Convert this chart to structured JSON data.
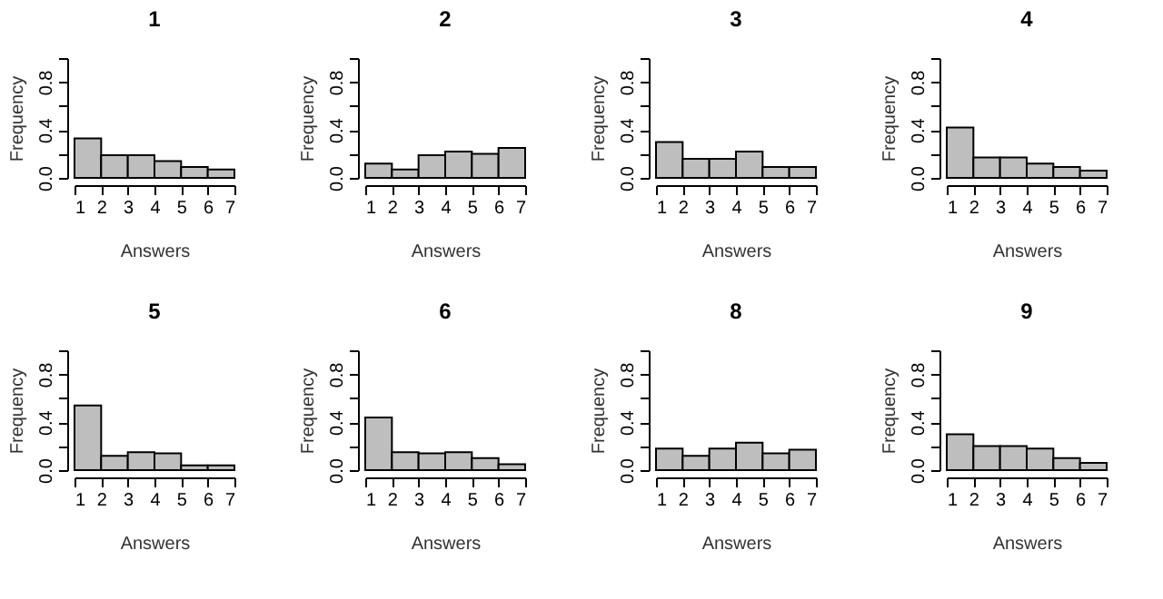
{
  "chart_data": [
    {
      "type": "histogram",
      "title": "1",
      "xlabel": "Answers",
      "ylabel": "Frequency",
      "bins": [
        1,
        2,
        3,
        4,
        5,
        6,
        7
      ],
      "values": [
        0.33,
        0.19,
        0.19,
        0.14,
        0.09,
        0.07
      ],
      "color": "#bebebe",
      "xlim": [
        1,
        7
      ],
      "xticks": [
        1,
        2,
        3,
        4,
        5,
        6,
        7
      ],
      "ylim": [
        0,
        1
      ],
      "yticks": [
        {
          "value": 0,
          "label": "0.0"
        },
        {
          "value": 0.2,
          "label": null
        },
        {
          "value": 0.4,
          "label": "0.4"
        },
        {
          "value": 0.6,
          "label": null
        },
        {
          "value": 0.8,
          "label": "0.8"
        },
        {
          "value": 1,
          "label": null
        }
      ]
    },
    {
      "type": "histogram",
      "title": "2",
      "xlabel": "Answers",
      "ylabel": "Frequency",
      "bins": [
        1,
        2,
        3,
        4,
        5,
        6,
        7
      ],
      "values": [
        0.12,
        0.07,
        0.19,
        0.22,
        0.2,
        0.25
      ],
      "color": "#bebebe",
      "xlim": [
        1,
        7
      ],
      "xticks": [
        1,
        2,
        3,
        4,
        5,
        6,
        7
      ],
      "ylim": [
        0,
        1
      ],
      "yticks": [
        {
          "value": 0,
          "label": "0.0"
        },
        {
          "value": 0.2,
          "label": null
        },
        {
          "value": 0.4,
          "label": "0.4"
        },
        {
          "value": 0.6,
          "label": null
        },
        {
          "value": 0.8,
          "label": "0.8"
        },
        {
          "value": 1,
          "label": null
        }
      ]
    },
    {
      "type": "histogram",
      "title": "3",
      "xlabel": "Answers",
      "ylabel": "Frequency",
      "bins": [
        1,
        2,
        3,
        4,
        5,
        6,
        7
      ],
      "values": [
        0.3,
        0.16,
        0.16,
        0.22,
        0.09,
        0.09
      ],
      "color": "#bebebe",
      "xlim": [
        1,
        7
      ],
      "xticks": [
        1,
        2,
        3,
        4,
        5,
        6,
        7
      ],
      "ylim": [
        0,
        1
      ],
      "yticks": [
        {
          "value": 0,
          "label": "0.0"
        },
        {
          "value": 0.2,
          "label": null
        },
        {
          "value": 0.4,
          "label": "0.4"
        },
        {
          "value": 0.6,
          "label": null
        },
        {
          "value": 0.8,
          "label": "0.8"
        },
        {
          "value": 1,
          "label": null
        }
      ]
    },
    {
      "type": "histogram",
      "title": "4",
      "xlabel": "Answers",
      "ylabel": "Frequency",
      "bins": [
        1,
        2,
        3,
        4,
        5,
        6,
        7
      ],
      "values": [
        0.42,
        0.17,
        0.17,
        0.12,
        0.09,
        0.06
      ],
      "color": "#bebebe",
      "xlim": [
        1,
        7
      ],
      "xticks": [
        1,
        2,
        3,
        4,
        5,
        6,
        7
      ],
      "ylim": [
        0,
        1
      ],
      "yticks": [
        {
          "value": 0,
          "label": "0.0"
        },
        {
          "value": 0.2,
          "label": null
        },
        {
          "value": 0.4,
          "label": "0.4"
        },
        {
          "value": 0.6,
          "label": null
        },
        {
          "value": 0.8,
          "label": "0.8"
        },
        {
          "value": 1,
          "label": null
        }
      ]
    },
    {
      "type": "histogram",
      "title": "5",
      "xlabel": "Answers",
      "ylabel": "Frequency",
      "bins": [
        1,
        2,
        3,
        4,
        5,
        6,
        7
      ],
      "values": [
        0.54,
        0.12,
        0.15,
        0.14,
        0.04,
        0.04
      ],
      "color": "#bebebe",
      "xlim": [
        1,
        7
      ],
      "xticks": [
        1,
        2,
        3,
        4,
        5,
        6,
        7
      ],
      "ylim": [
        0,
        1
      ],
      "yticks": [
        {
          "value": 0,
          "label": "0.0"
        },
        {
          "value": 0.2,
          "label": null
        },
        {
          "value": 0.4,
          "label": "0.4"
        },
        {
          "value": 0.6,
          "label": null
        },
        {
          "value": 0.8,
          "label": "0.8"
        },
        {
          "value": 1,
          "label": null
        }
      ]
    },
    {
      "type": "histogram",
      "title": "6",
      "xlabel": "Answers",
      "ylabel": "Frequency",
      "bins": [
        1,
        2,
        3,
        4,
        5,
        6,
        7
      ],
      "values": [
        0.44,
        0.15,
        0.14,
        0.15,
        0.1,
        0.05
      ],
      "color": "#bebebe",
      "xlim": [
        1,
        7
      ],
      "xticks": [
        1,
        2,
        3,
        4,
        5,
        6,
        7
      ],
      "ylim": [
        0,
        1
      ],
      "yticks": [
        {
          "value": 0,
          "label": "0.0"
        },
        {
          "value": 0.2,
          "label": null
        },
        {
          "value": 0.4,
          "label": "0.4"
        },
        {
          "value": 0.6,
          "label": null
        },
        {
          "value": 0.8,
          "label": "0.8"
        },
        {
          "value": 1,
          "label": null
        }
      ]
    },
    {
      "type": "histogram",
      "title": "8",
      "xlabel": "Answers",
      "ylabel": "Frequency",
      "bins": [
        1,
        2,
        3,
        4,
        5,
        6,
        7
      ],
      "values": [
        0.18,
        0.12,
        0.18,
        0.23,
        0.14,
        0.17
      ],
      "color": "#bebebe",
      "xlim": [
        1,
        7
      ],
      "xticks": [
        1,
        2,
        3,
        4,
        5,
        6,
        7
      ],
      "ylim": [
        0,
        1
      ],
      "yticks": [
        {
          "value": 0,
          "label": "0.0"
        },
        {
          "value": 0.2,
          "label": null
        },
        {
          "value": 0.4,
          "label": "0.4"
        },
        {
          "value": 0.6,
          "label": null
        },
        {
          "value": 0.8,
          "label": "0.8"
        },
        {
          "value": 1,
          "label": null
        }
      ]
    },
    {
      "type": "histogram",
      "title": "9",
      "xlabel": "Answers",
      "ylabel": "Frequency",
      "bins": [
        1,
        2,
        3,
        4,
        5,
        6,
        7
      ],
      "values": [
        0.3,
        0.2,
        0.2,
        0.18,
        0.1,
        0.06
      ],
      "color": "#bebebe",
      "xlim": [
        1,
        7
      ],
      "xticks": [
        1,
        2,
        3,
        4,
        5,
        6,
        7
      ],
      "ylim": [
        0,
        1
      ],
      "yticks": [
        {
          "value": 0,
          "label": "0.0"
        },
        {
          "value": 0.2,
          "label": null
        },
        {
          "value": 0.4,
          "label": "0.4"
        },
        {
          "value": 0.6,
          "label": null
        },
        {
          "value": 0.8,
          "label": "0.8"
        },
        {
          "value": 1,
          "label": null
        }
      ]
    }
  ]
}
